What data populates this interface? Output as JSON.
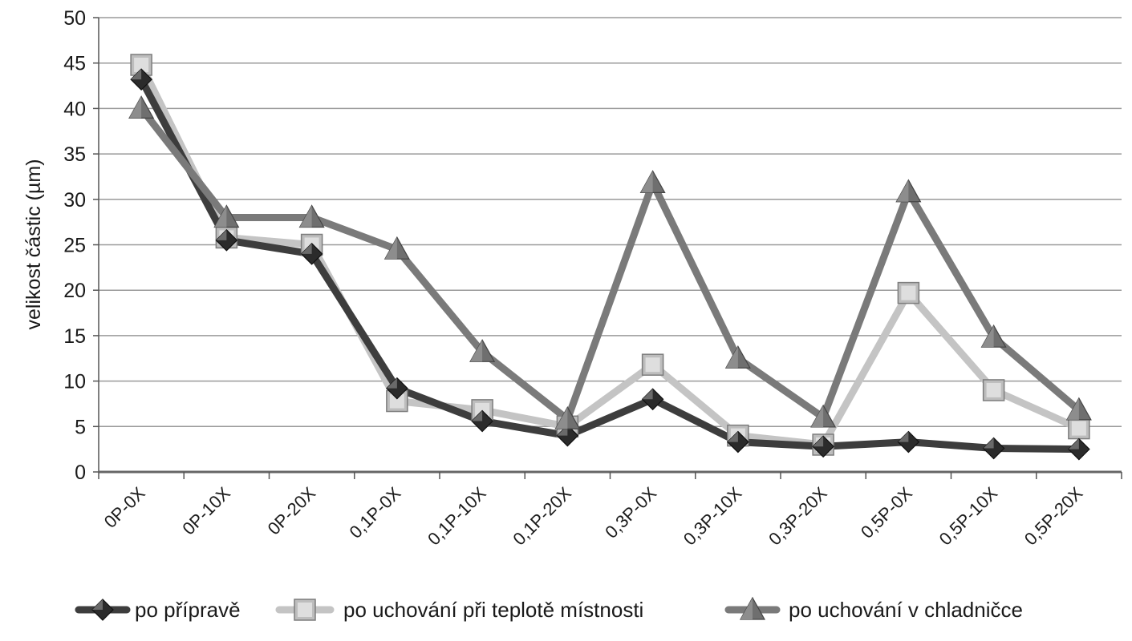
{
  "chart_data": {
    "type": "line",
    "title": "",
    "xlabel": "",
    "ylabel": "velikost částic (µm)",
    "ylim": [
      0,
      50
    ],
    "yticks": [
      0,
      5,
      10,
      15,
      20,
      25,
      30,
      35,
      40,
      45,
      50
    ],
    "grid": true,
    "legend_position": "bottom",
    "categories": [
      "0P-0X",
      "0P-10X",
      "0P-20X",
      "0,1P-0X",
      "0,1P-10X",
      "0,1P-20X",
      "0,3P-0X",
      "0,3P-10X",
      "0,3P-20X",
      "0,5P-0X",
      "0,5P-10X",
      "0,5P-20X"
    ],
    "series": [
      {
        "name": "po přípravě",
        "marker": "diamond",
        "color": "#3d3d3d",
        "values": [
          43.2,
          25.5,
          24,
          9.2,
          5.6,
          4,
          8,
          3.3,
          2.8,
          3.3,
          2.6,
          2.5
        ]
      },
      {
        "name": "po uchování při teplotě místnosti",
        "marker": "square",
        "color": "#c4c4c4",
        "values": [
          44.8,
          25.8,
          25,
          7.8,
          6.8,
          5,
          11.8,
          4,
          3,
          19.7,
          9,
          4.8
        ]
      },
      {
        "name": "po uchování v chladničce",
        "marker": "triangle",
        "color": "#7a7a7a",
        "values": [
          40,
          28,
          28,
          24.5,
          13.2,
          5.8,
          31.8,
          12.5,
          6,
          30.8,
          14.8,
          6.8
        ]
      }
    ]
  }
}
